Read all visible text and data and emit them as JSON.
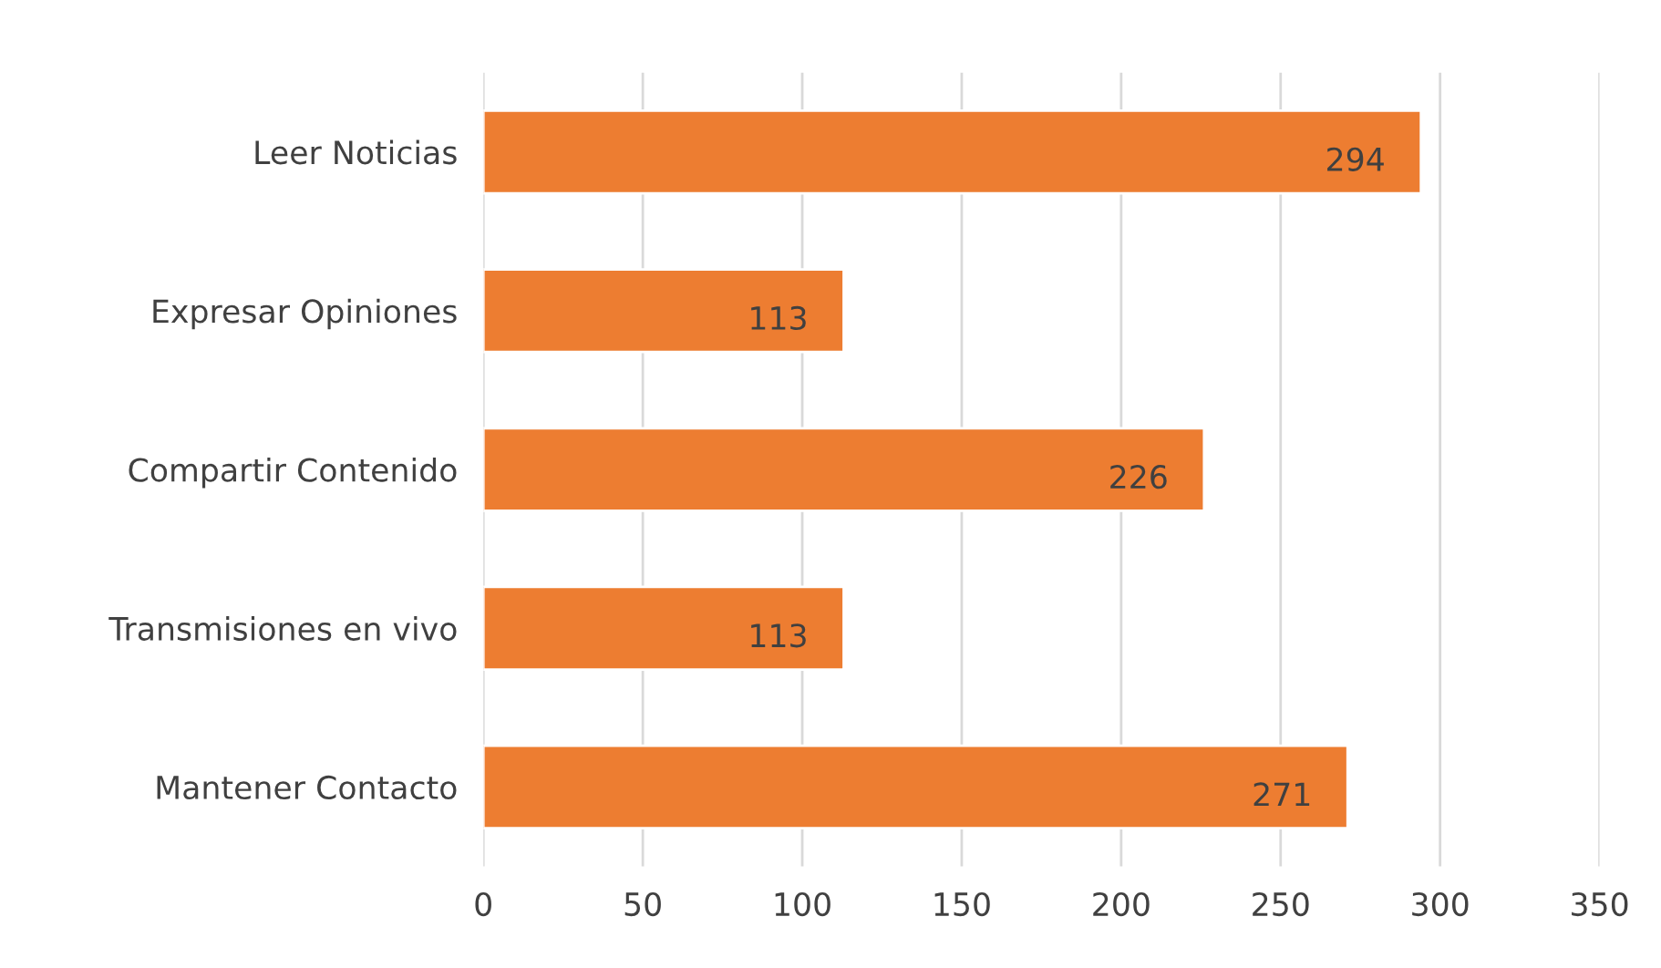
{
  "chart_data": {
    "type": "bar",
    "orientation": "horizontal",
    "categories": [
      "Leer Noticias",
      "Expresar Opiniones",
      "Compartir Contenido",
      "Transmisiones en vivo",
      "Mantener Contacto"
    ],
    "values": [
      294,
      113,
      226,
      113,
      271
    ],
    "color": "#ed7d31",
    "xlim": [
      0,
      350
    ],
    "xticks": [
      0,
      50,
      100,
      150,
      200,
      250,
      300,
      350
    ],
    "grid": "x",
    "data_labels": true,
    "legend": false
  }
}
